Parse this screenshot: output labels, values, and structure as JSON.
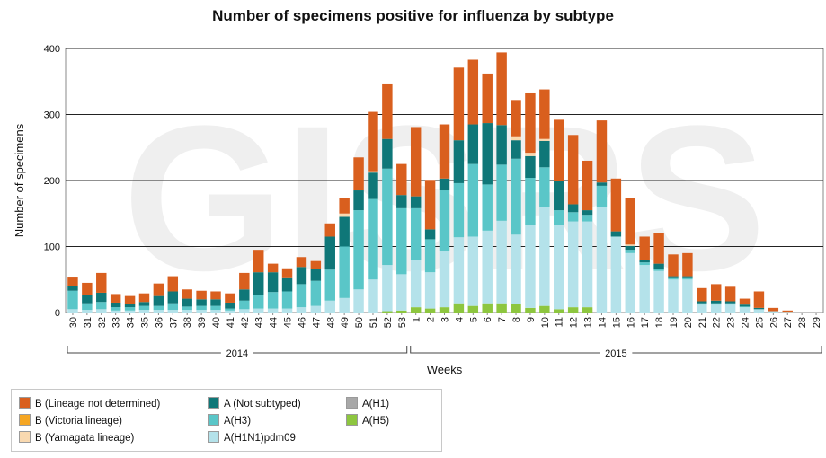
{
  "chart_data": {
    "type": "bar",
    "stacked": true,
    "title": "Number of specimens positive for influenza by subtype",
    "xlabel": "Weeks",
    "ylabel": "Number of specimens",
    "ylim": [
      0,
      400
    ],
    "yticks": [
      0,
      100,
      200,
      300,
      400
    ],
    "grid": true,
    "legend_position": "bottom-left",
    "watermark": "GISRS",
    "year_groups": [
      {
        "label": "2014",
        "from": "30",
        "to": "53"
      },
      {
        "label": "2015",
        "from": "1",
        "to": "29"
      }
    ],
    "categories": [
      "30",
      "31",
      "32",
      "33",
      "34",
      "35",
      "36",
      "37",
      "38",
      "39",
      "40",
      "41",
      "42",
      "43",
      "44",
      "45",
      "46",
      "47",
      "48",
      "49",
      "50",
      "51",
      "52",
      "53",
      "1",
      "2",
      "3",
      "4",
      "5",
      "6",
      "7",
      "8",
      "9",
      "10",
      "11",
      "12",
      "13",
      "14",
      "15",
      "16",
      "17",
      "18",
      "19",
      "20",
      "21",
      "22",
      "23",
      "24",
      "25",
      "26",
      "27",
      "28",
      "29"
    ],
    "series": [
      {
        "name": "A(H5)",
        "color": "#8dc63f",
        "values": [
          0,
          0,
          0,
          0,
          0,
          0,
          0,
          0,
          0,
          0,
          0,
          0,
          0,
          0,
          0,
          0,
          0,
          0,
          0,
          0,
          0,
          0,
          2,
          3,
          8,
          6,
          8,
          14,
          10,
          14,
          14,
          13,
          7,
          10,
          5,
          8,
          8,
          0,
          0,
          0,
          0,
          0,
          0,
          0,
          0,
          0,
          0,
          0,
          0,
          0,
          0,
          0,
          0
        ]
      },
      {
        "name": "A(H1)",
        "color": "#a8a8a8",
        "values": [
          0,
          0,
          0,
          0,
          0,
          0,
          0,
          0,
          0,
          0,
          0,
          0,
          0,
          0,
          0,
          0,
          0,
          0,
          0,
          0,
          0,
          0,
          0,
          0,
          0,
          0,
          0,
          0,
          0,
          0,
          0,
          0,
          0,
          0,
          0,
          0,
          0,
          0,
          0,
          0,
          0,
          0,
          0,
          0,
          0,
          0,
          0,
          0,
          0,
          0,
          0,
          0,
          0
        ]
      },
      {
        "name": "A(H1N1)pdm09",
        "color": "#b4e2ea",
        "values": [
          5,
          4,
          5,
          3,
          3,
          4,
          4,
          4,
          4,
          4,
          4,
          3,
          5,
          6,
          6,
          6,
          8,
          10,
          18,
          22,
          35,
          50,
          70,
          55,
          72,
          55,
          85,
          100,
          105,
          110,
          125,
          105,
          125,
          150,
          128,
          130,
          130,
          160,
          115,
          90,
          72,
          63,
          50,
          50,
          12,
          12,
          12,
          8,
          5,
          2,
          1,
          0,
          0
        ]
      },
      {
        "name": "A(H3)",
        "color": "#5ac6c8",
        "values": [
          28,
          10,
          11,
          5,
          5,
          6,
          6,
          10,
          5,
          6,
          6,
          3,
          13,
          20,
          25,
          26,
          35,
          38,
          47,
          78,
          120,
          122,
          146,
          100,
          78,
          50,
          92,
          82,
          110,
          70,
          85,
          115,
          72,
          60,
          22,
          14,
          10,
          32,
          0,
          5,
          4,
          3,
          2,
          2,
          2,
          2,
          2,
          1,
          0,
          0,
          0,
          0,
          0
        ]
      },
      {
        "name": "A(Not subtyped)",
        "color": "#0f7778",
        "values": [
          7,
          13,
          14,
          7,
          5,
          6,
          15,
          18,
          12,
          10,
          10,
          9,
          17,
          35,
          30,
          20,
          26,
          18,
          50,
          45,
          30,
          40,
          45,
          20,
          18,
          15,
          18,
          65,
          60,
          93,
          60,
          28,
          33,
          40,
          45,
          12,
          7,
          5,
          8,
          6,
          4,
          8,
          3,
          3,
          3,
          4,
          3,
          3,
          2,
          0,
          0,
          0,
          0
        ]
      },
      {
        "name": "B (Victoria lineage)",
        "color": "#f5a623",
        "values": [
          0,
          0,
          0,
          0,
          0,
          0,
          0,
          0,
          0,
          0,
          0,
          0,
          0,
          0,
          0,
          0,
          0,
          0,
          0,
          0,
          0,
          0,
          0,
          0,
          0,
          0,
          0,
          0,
          0,
          0,
          0,
          0,
          0,
          0,
          0,
          0,
          0,
          0,
          0,
          0,
          0,
          0,
          0,
          0,
          0,
          0,
          0,
          0,
          0,
          0,
          0,
          0,
          0
        ]
      },
      {
        "name": "B (Yamagata lineage)",
        "color": "#f9d9b0",
        "values": [
          0,
          0,
          0,
          0,
          0,
          0,
          0,
          0,
          0,
          0,
          0,
          0,
          0,
          0,
          0,
          0,
          0,
          0,
          0,
          5,
          0,
          2,
          0,
          0,
          0,
          0,
          0,
          0,
          0,
          0,
          0,
          6,
          5,
          3,
          0,
          0,
          0,
          0,
          0,
          2,
          0,
          0,
          0,
          0,
          0,
          0,
          0,
          0,
          0,
          0,
          0,
          0,
          0
        ]
      },
      {
        "name": "B (Lineage not determined)",
        "color": "#d95f1e",
        "values": [
          13,
          18,
          30,
          13,
          12,
          13,
          19,
          23,
          14,
          13,
          12,
          14,
          25,
          34,
          13,
          15,
          15,
          12,
          20,
          23,
          50,
          90,
          84,
          47,
          105,
          75,
          82,
          110,
          98,
          75,
          110,
          55,
          90,
          75,
          92,
          105,
          75,
          94,
          80,
          70,
          35,
          47,
          33,
          35,
          20,
          25,
          22,
          9,
          25,
          5,
          2,
          0,
          0
        ]
      }
    ]
  },
  "legend": {
    "col1": [
      {
        "label": "B (Lineage not determined)",
        "color": "#d95f1e"
      },
      {
        "label": "B (Victoria lineage)",
        "color": "#f5a623"
      },
      {
        "label": "B (Yamagata lineage)",
        "color": "#f9d9b0"
      }
    ],
    "col2": [
      {
        "label": "A (Not subtyped)",
        "color": "#0f7778"
      },
      {
        "label": "A(H3)",
        "color": "#5ac6c8"
      },
      {
        "label": "A(H1N1)pdm09",
        "color": "#b4e2ea"
      }
    ],
    "col3": [
      {
        "label": "A(H1)",
        "color": "#a8a8a8"
      },
      {
        "label": "A(H5)",
        "color": "#8dc63f"
      }
    ]
  }
}
